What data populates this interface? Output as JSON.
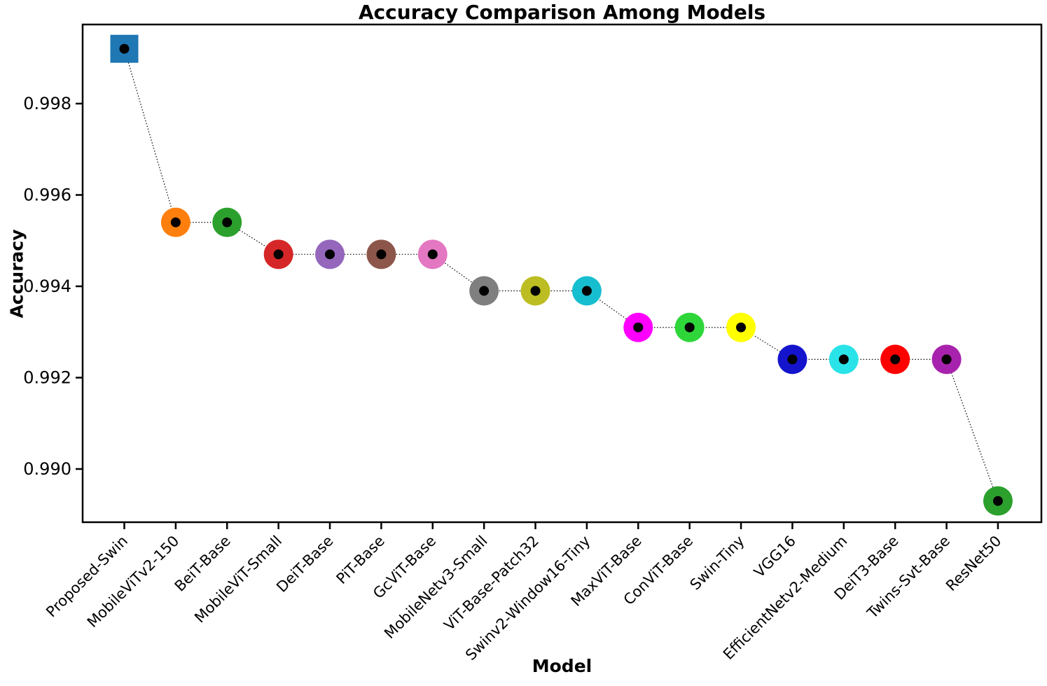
{
  "chart_data": {
    "type": "scatter",
    "title": "Accuracy Comparison Among Models",
    "xlabel": "Model",
    "ylabel": "Accuracy",
    "categories": [
      "Proposed-Swin",
      "MobileViTv2-150",
      "BeiT-Base",
      "MobileViT-Small",
      "DeiT-Base",
      "PiT-Base",
      "GcViT-Base",
      "MobileNetv3-Small",
      "ViT-Base-Patch32",
      "Swinv2-Window16-Tiny",
      "MaxViT-Base",
      "ConViT-Base",
      "Swin-Tiny",
      "VGG16",
      "EfficientNetv2-Medium",
      "DeiT3-Base",
      "Twins-Svt-Base",
      "ResNet50"
    ],
    "values": [
      0.9992,
      0.9954,
      0.9954,
      0.9947,
      0.9947,
      0.9947,
      0.9947,
      0.9939,
      0.9939,
      0.9939,
      0.9931,
      0.9931,
      0.9931,
      0.9924,
      0.9924,
      0.9924,
      0.9924,
      0.9893
    ],
    "marker_shapes": [
      "square",
      "circle",
      "circle",
      "circle",
      "circle",
      "circle",
      "circle",
      "circle",
      "circle",
      "circle",
      "circle",
      "circle",
      "circle",
      "circle",
      "circle",
      "circle",
      "circle",
      "circle"
    ],
    "marker_colors": [
      "#1f77b4",
      "#ff7f0e",
      "#2ca02c",
      "#d62728",
      "#9467bd",
      "#8c564b",
      "#e377c2",
      "#7f7f7f",
      "#bcbd22",
      "#17becf",
      "#ff00ff",
      "#2ed63a",
      "#ffff00",
      "#1414cd",
      "#2ae3e8",
      "#ff0000",
      "#a823ad",
      "#2ca02c"
    ],
    "marker_center_dot_color": "#000000",
    "connector_line": {
      "style": "dotted",
      "color": "#000000"
    },
    "y_ticks": [
      {
        "value": 0.99,
        "label": "0.990"
      },
      {
        "value": 0.992,
        "label": "0.992"
      },
      {
        "value": 0.994,
        "label": "0.994"
      },
      {
        "value": 0.996,
        "label": "0.996"
      },
      {
        "value": 0.998,
        "label": "0.998"
      }
    ],
    "ylim": [
      0.988835,
      0.999732
    ],
    "grid": false,
    "legend": false,
    "axis_color": "#000000",
    "background_color": "#ffffff"
  }
}
